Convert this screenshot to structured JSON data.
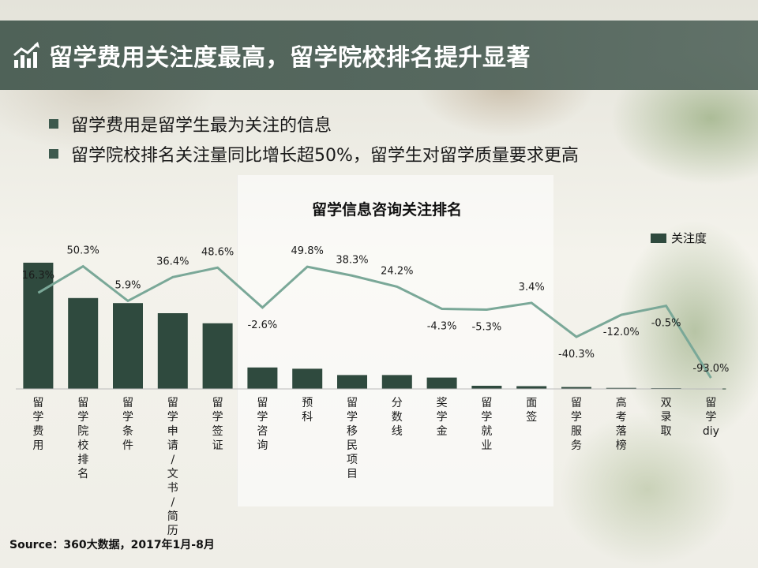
{
  "header": {
    "title": "留学费用关注度最高，留学院校排名提升显著"
  },
  "bullets": [
    "留学费用是留学生最为关注的信息",
    "留学院校排名关注量同比增长超50%，留学生对留学质量要求更高"
  ],
  "source": "Source：360大数据，2017年1月-8月",
  "colors": {
    "header_bg": "#56685f",
    "bar": "#2f4a3e",
    "line": "#7aa898"
  },
  "chart_data": {
    "type": "bar",
    "title": "留学信息咨询关注排名",
    "legend": [
      "关注度"
    ],
    "legend_position": "top-right",
    "categories": [
      "留学费用",
      "留学院校排名",
      "留学条件",
      "留学申请/文书/简历",
      "留学签证",
      "留学咨询",
      "预科",
      "留学移民项目",
      "分数线",
      "奖学金",
      "留学就业",
      "面签",
      "留学服务",
      "高考落榜",
      "双录取",
      "留学diy"
    ],
    "values": [
      100,
      72,
      68,
      60,
      52,
      17,
      16,
      11,
      11,
      9,
      2.5,
      2.2,
      1.5,
      0.8,
      0.6,
      0.3
    ],
    "growth_labels": [
      "16.3%",
      "50.3%",
      "5.9%",
      "36.4%",
      "48.6%",
      "-2.6%",
      "49.8%",
      "38.3%",
      "24.2%",
      "-4.3%",
      "-5.3%",
      "3.4%",
      "-40.3%",
      "-12.0%",
      "-0.5%",
      "-93.0%"
    ],
    "growth": [
      16.3,
      50.3,
      5.9,
      36.4,
      48.6,
      -2.6,
      49.8,
      38.3,
      24.2,
      -4.3,
      -5.3,
      3.4,
      -40.3,
      -12.0,
      -0.5,
      -93.0
    ],
    "growth_range": [
      -100,
      60
    ],
    "ylim": [
      0,
      100
    ],
    "xlabel": "",
    "ylabel": ""
  }
}
